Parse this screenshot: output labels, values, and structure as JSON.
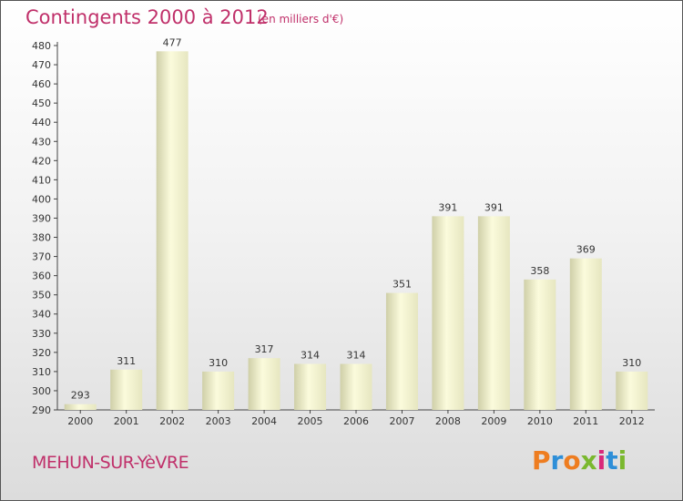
{
  "header": {
    "title": "Contingents 2000 à 2012",
    "subtitle": "(en milliers d'€)"
  },
  "footer": {
    "city": "MEHUN-SUR-YèVRE",
    "brand": "Proxiti"
  },
  "colors": {
    "title": "#c0306a",
    "bar_light": "#fbfbdc",
    "bar_dark": "#cfcfa8",
    "brand_letters": [
      "#ee7d20",
      "#2e8fd8",
      "#ee7d20",
      "#7ab82e",
      "#d9297a",
      "#2e8fd8",
      "#7ab82e"
    ]
  },
  "chart_data": {
    "type": "bar",
    "title": "Contingents 2000 à 2012",
    "subtitle": "(en milliers d'€)",
    "categories": [
      "2000",
      "2001",
      "2002",
      "2003",
      "2004",
      "2005",
      "2006",
      "2007",
      "2008",
      "2009",
      "2010",
      "2011",
      "2012"
    ],
    "values": [
      293,
      311,
      477,
      310,
      317,
      314,
      314,
      351,
      391,
      391,
      358,
      369,
      310
    ],
    "ylim": [
      290,
      480
    ],
    "yticks": [
      290,
      300,
      310,
      320,
      330,
      340,
      350,
      360,
      370,
      380,
      390,
      400,
      410,
      420,
      430,
      440,
      450,
      460,
      470,
      480
    ],
    "grid": false
  }
}
